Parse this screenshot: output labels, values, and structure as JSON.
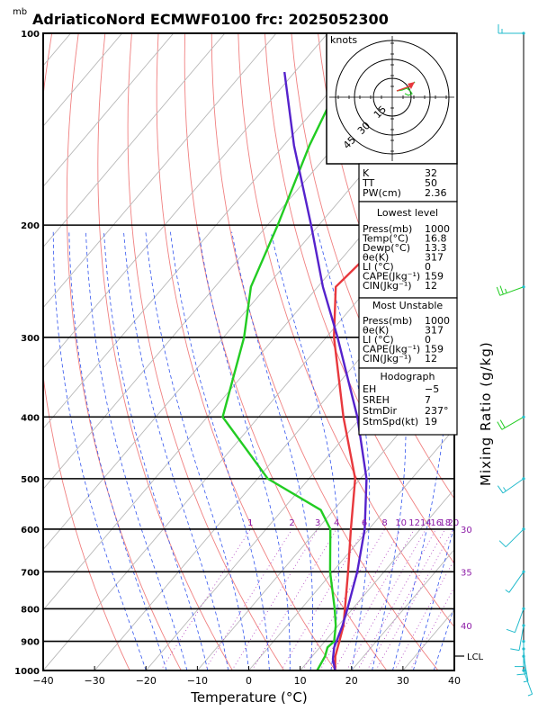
{
  "title": "AdriaticoNord ECMWF0100 frc: 2025052300",
  "units_top": "mb",
  "x_axis_label": "Temperature (°C)",
  "right_axis_label": "Mixing Ratio (g/kg)",
  "lcl_label": "LCL",
  "hodograph": {
    "units": "knots",
    "ring_labels": [
      "15",
      "30",
      "45"
    ]
  },
  "indices": [
    {
      "label": "K",
      "value": "32"
    },
    {
      "label": "TT",
      "value": "50"
    },
    {
      "label": "PW(cm)",
      "value": "2.36"
    }
  ],
  "lowest_level": {
    "heading": "Lowest level",
    "rows": [
      {
        "label": "Press(mb)",
        "value": "1000"
      },
      {
        "label": "Temp(°C)",
        "value": "16.8"
      },
      {
        "label": "Dewp(°C)",
        "value": "13.3"
      },
      {
        "label": "θe(K)",
        "value": "317"
      },
      {
        "label": "LI (°C)",
        "value": "0"
      },
      {
        "label": "CAPE(Jkg⁻¹)",
        "value": "159"
      },
      {
        "label": "CIN(Jkg⁻¹)",
        "value": "12"
      }
    ]
  },
  "most_unstable": {
    "heading": "Most Unstable",
    "rows": [
      {
        "label": "Press(mb)",
        "value": "1000"
      },
      {
        "label": "θe(K)",
        "value": "317"
      },
      {
        "label": "LI (°C)",
        "value": "0"
      },
      {
        "label": "CAPE(Jkg⁻¹)",
        "value": "159"
      },
      {
        "label": "CIN(Jkg⁻¹)",
        "value": "12"
      }
    ]
  },
  "hodograph_box": {
    "heading": "Hodograph",
    "rows": [
      {
        "label": "EH",
        "value": "−5"
      },
      {
        "label": "SREH",
        "value": "7"
      },
      {
        "label": "StmDir",
        "value": "237°"
      },
      {
        "label": "StmSpd(kt)",
        "value": "19"
      }
    ]
  },
  "chart_data": {
    "type": "line",
    "subtype": "skew-T log-P diagram",
    "x_axis": {
      "label": "Temperature (°C)",
      "range": [
        -40,
        40
      ],
      "ticks": [
        -40,
        -30,
        -20,
        -10,
        0,
        10,
        20,
        30,
        40
      ]
    },
    "y_axis": {
      "units": "mb",
      "scale": "log",
      "range": [
        1000,
        100
      ],
      "ticks": [
        100,
        200,
        300,
        400,
        500,
        600,
        700,
        800,
        900,
        1000
      ]
    },
    "mixing_ratio_labels": [
      "1",
      "2",
      "3",
      "4",
      "6",
      "8",
      "10",
      "12",
      "14",
      "16",
      "18",
      "20",
      "25",
      "30"
    ],
    "theta_e_labels": [
      "30",
      "35",
      "40"
    ],
    "series": [
      {
        "key": "temperature",
        "color": "#e8383d",
        "points": [
          [
            1000,
            16.8
          ],
          [
            950,
            14.5
          ],
          [
            900,
            12.8
          ],
          [
            850,
            11.0
          ],
          [
            800,
            8.5
          ],
          [
            700,
            3.0
          ],
          [
            600,
            -3.5
          ],
          [
            500,
            -11.0
          ],
          [
            400,
            -23.5
          ],
          [
            300,
            -38.5
          ],
          [
            250,
            -46.5
          ],
          [
            200,
            -44.5
          ],
          [
            150,
            -44.0
          ],
          [
            110,
            -43.5
          ]
        ]
      },
      {
        "key": "dewpoint",
        "color": "#22cc22",
        "points": [
          [
            1000,
            13.3
          ],
          [
            950,
            12.5
          ],
          [
            920,
            11.5
          ],
          [
            900,
            11.8
          ],
          [
            850,
            9.5
          ],
          [
            800,
            6.5
          ],
          [
            700,
            -0.5
          ],
          [
            600,
            -7.5
          ],
          [
            560,
            -12.5
          ],
          [
            500,
            -28.0
          ],
          [
            400,
            -47.0
          ],
          [
            300,
            -56.0
          ],
          [
            250,
            -63.0
          ],
          [
            200,
            -68.0
          ],
          [
            150,
            -75.0
          ],
          [
            100,
            -83.0
          ]
        ]
      },
      {
        "key": "parcel",
        "color": "#5522cc",
        "points": [
          [
            1000,
            16.8
          ],
          [
            960,
            14.5
          ],
          [
            920,
            12.8
          ],
          [
            850,
            10.8
          ],
          [
            800,
            9.0
          ],
          [
            700,
            4.8
          ],
          [
            600,
            -0.8
          ],
          [
            500,
            -8.8
          ],
          [
            400,
            -20.8
          ],
          [
            300,
            -37.8
          ],
          [
            250,
            -49.0
          ],
          [
            200,
            -61.5
          ],
          [
            150,
            -78.0
          ],
          [
            115,
            -92.0
          ]
        ]
      }
    ],
    "wind_barbs": [
      {
        "p": 100,
        "dir": 270,
        "spd": 15
      },
      {
        "p": 250,
        "dir": 250,
        "spd": 25
      },
      {
        "p": 400,
        "dir": 240,
        "spd": 20
      },
      {
        "p": 500,
        "dir": 235,
        "spd": 15
      },
      {
        "p": 600,
        "dir": 225,
        "spd": 10
      },
      {
        "p": 700,
        "dir": 215,
        "spd": 5
      },
      {
        "p": 800,
        "dir": 200,
        "spd": 10
      },
      {
        "p": 850,
        "dir": 190,
        "spd": 10
      },
      {
        "p": 900,
        "dir": 180,
        "spd": 10
      },
      {
        "p": 925,
        "dir": 175,
        "spd": 10
      },
      {
        "p": 950,
        "dir": 170,
        "spd": 5
      },
      {
        "p": 1000,
        "dir": 160,
        "spd": 5
      }
    ]
  }
}
